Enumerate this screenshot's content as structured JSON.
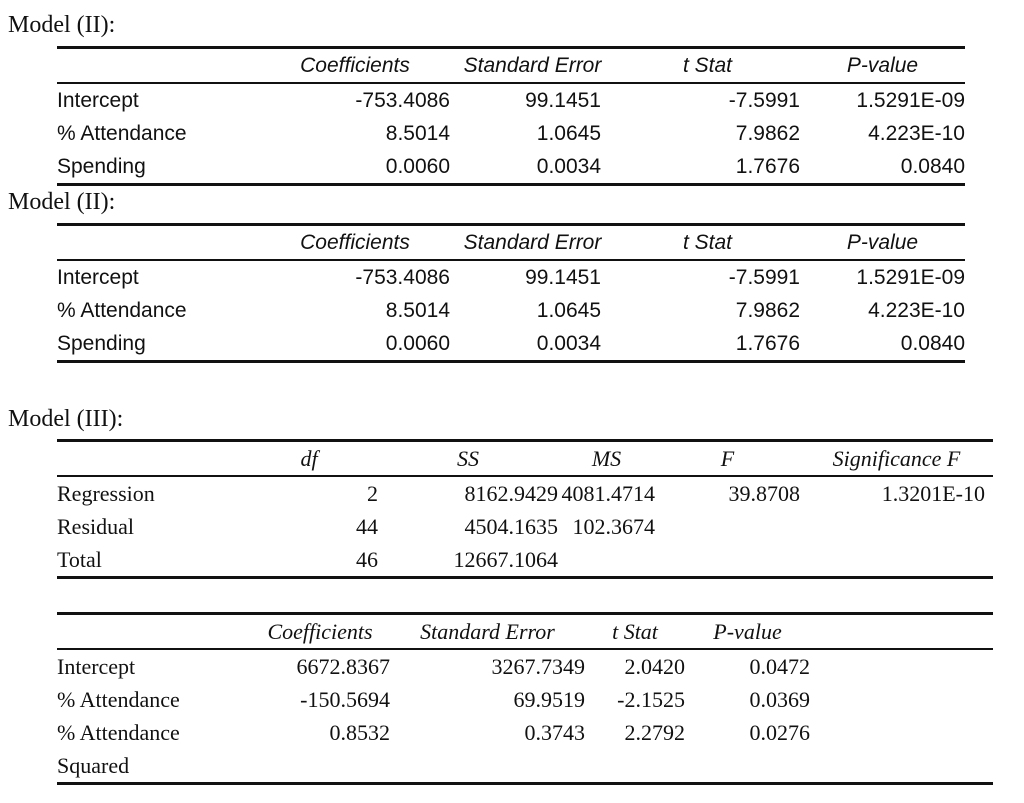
{
  "page": {
    "background": "#ffffff",
    "text_color": "#111111",
    "rule_color": "#111111"
  },
  "sections": [
    {
      "title": "Model (II):",
      "table": {
        "headers": [
          "Coefficients",
          "Standard Error",
          "t Stat",
          "P-value"
        ],
        "rows": [
          {
            "label": "Intercept",
            "values": [
              "-753.4086",
              "99.1451",
              "-7.5991",
              "1.5291E-09"
            ]
          },
          {
            "label": "% Attendance",
            "values": [
              "8.5014",
              "1.0645",
              "7.9862",
              "4.223E-10"
            ]
          },
          {
            "label": "Spending",
            "values": [
              "0.0060",
              "0.0034",
              "1.7676",
              "0.0840"
            ]
          }
        ]
      }
    },
    {
      "title": "Model (II):",
      "table": {
        "headers": [
          "Coefficients",
          "Standard Error",
          "t Stat",
          "P-value"
        ],
        "rows": [
          {
            "label": "Intercept",
            "values": [
              "-753.4086",
              "99.1451",
              "-7.5991",
              "1.5291E-09"
            ]
          },
          {
            "label": "% Attendance",
            "values": [
              "8.5014",
              "1.0645",
              "7.9862",
              "4.223E-10"
            ]
          },
          {
            "label": "Spending",
            "values": [
              "0.0060",
              "0.0034",
              "1.7676",
              "0.0840"
            ]
          }
        ]
      }
    },
    {
      "title": "Model (III):",
      "anova_table": {
        "headers": [
          "df",
          "SS",
          "MS",
          "F",
          "Significance F"
        ],
        "rows": [
          {
            "label": "Regression",
            "values": [
              "2",
              "8162.9429",
              "4081.4714",
              "39.8708",
              "1.3201E-10"
            ]
          },
          {
            "label": "Residual",
            "values": [
              "44",
              "4504.1635",
              "102.3674",
              "",
              ""
            ]
          },
          {
            "label": "Total",
            "values": [
              "46",
              "12667.1064",
              "",
              "",
              ""
            ]
          }
        ]
      },
      "coef_table": {
        "headers": [
          "Coefficients",
          "Standard Error",
          "t Stat",
          "P-value"
        ],
        "rows": [
          {
            "label": "Intercept",
            "values": [
              "6672.8367",
              "3267.7349",
              "2.0420",
              "0.0472"
            ]
          },
          {
            "label": "% Attendance",
            "values": [
              "-150.5694",
              "69.9519",
              "-2.1525",
              "0.0369"
            ]
          },
          {
            "label": "% Attendance Squared",
            "values": [
              "0.8532",
              "0.3743",
              "2.2792",
              "0.0276"
            ]
          }
        ]
      }
    }
  ]
}
